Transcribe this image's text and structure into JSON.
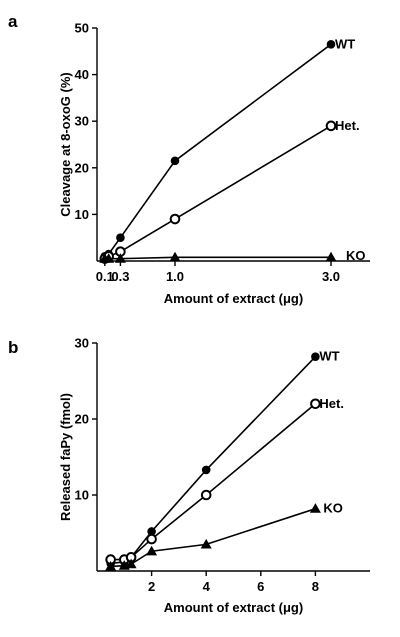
{
  "chart_data": [
    {
      "panel": "a",
      "type": "line",
      "xlabel": "Amount of extract (μg)",
      "ylabel": "Cleavage at 8-oxoG (%)",
      "xlim": [
        0,
        3.5
      ],
      "ylim": [
        0,
        50
      ],
      "x_ticks": [
        0.1,
        0.3,
        1.0,
        3.0
      ],
      "x_tick_labels": [
        "0.1",
        "0.3",
        "1.0",
        "3.0"
      ],
      "y_ticks": [
        10,
        20,
        30,
        40,
        50
      ],
      "y_tick_labels": [
        "10",
        "20",
        "30",
        "40",
        "50"
      ],
      "series": [
        {
          "name": "WT",
          "marker": "filled-circle",
          "x": [
            0.1,
            0.15,
            0.3,
            1.0,
            3.0
          ],
          "y": [
            1,
            1.5,
            5,
            21.5,
            46.5
          ]
        },
        {
          "name": "Het.",
          "marker": "open-circle",
          "x": [
            0.1,
            0.15,
            0.3,
            1.0,
            3.0
          ],
          "y": [
            0.5,
            1,
            2,
            9,
            29
          ]
        },
        {
          "name": "KO",
          "marker": "filled-triangle",
          "x": [
            0.1,
            0.15,
            0.3,
            1.0,
            3.0
          ],
          "y": [
            0.5,
            0.5,
            0.5,
            0.8,
            0.8
          ]
        }
      ]
    },
    {
      "panel": "b",
      "type": "line",
      "xlabel": "Amount of extract (μg)",
      "ylabel": "Released faPy (fmol)",
      "xlim": [
        0,
        10
      ],
      "ylim": [
        0,
        30
      ],
      "x_ticks": [
        2,
        4,
        6,
        8
      ],
      "x_tick_labels": [
        "2",
        "4",
        "6",
        "8"
      ],
      "y_ticks": [
        10,
        20,
        30
      ],
      "y_tick_labels": [
        "10",
        "20",
        "30"
      ],
      "series": [
        {
          "name": "WT",
          "marker": "filled-circle",
          "x": [
            0.5,
            1,
            1.25,
            2,
            4,
            8
          ],
          "y": [
            1,
            1.2,
            1.8,
            5.2,
            13.3,
            28.2
          ]
        },
        {
          "name": "Het.",
          "marker": "open-circle",
          "x": [
            0.5,
            1,
            1.25,
            2,
            4,
            8
          ],
          "y": [
            1.5,
            1.5,
            1.8,
            4.2,
            10,
            22
          ]
        },
        {
          "name": "KO",
          "marker": "filled-triangle",
          "x": [
            0.5,
            1,
            1.25,
            2,
            4,
            8
          ],
          "y": [
            0.6,
            0.7,
            0.9,
            2.6,
            3.5,
            8.2
          ]
        }
      ]
    }
  ]
}
